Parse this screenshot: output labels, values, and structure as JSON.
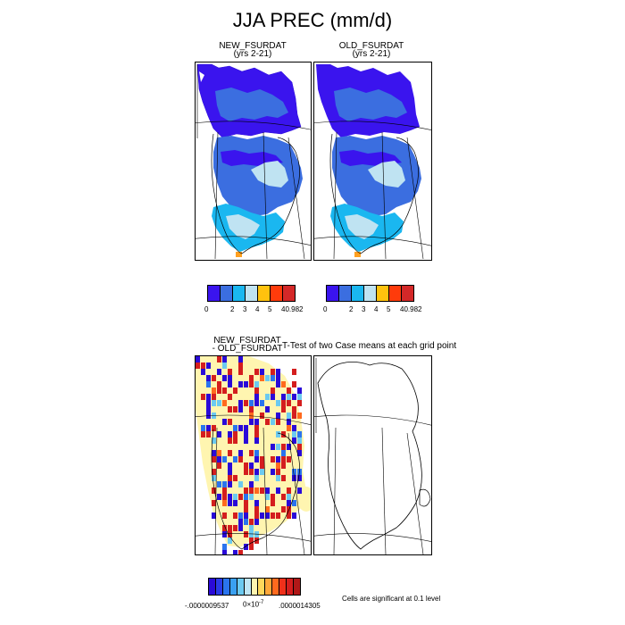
{
  "title": "JJA PREC (mm/d)",
  "top_panels": [
    {
      "title": "NEW_FSURDAT",
      "subtitle": "(yrs 2-21)"
    },
    {
      "title": "OLD_FSURDAT",
      "subtitle": "(yrs 2-21)"
    }
  ],
  "top_colorbar": {
    "colors": [
      "#3a14ee",
      "#3b6ee0",
      "#1ab7f0",
      "#bfe3f2",
      "#ffc20e",
      "#ff3b0b",
      "#d42828"
    ],
    "labels": [
      "0",
      "2",
      "3",
      "4",
      "5",
      "40.982"
    ]
  },
  "diff_panel": {
    "title_line1": "NEW_FSURDAT",
    "title_line2": "- OLD_FSURDAT"
  },
  "ttest_title": "T-Test of two Case means at each grid point",
  "bottom_colorbar": {
    "colors": [
      "#2a0ad8",
      "#2a3ae8",
      "#2a74ee",
      "#3aa0f0",
      "#6ccaf0",
      "#bfe6f5",
      "#fff5b0",
      "#ffd85c",
      "#ffa83a",
      "#ff6a1e",
      "#f0301a",
      "#d41e1e",
      "#b01818"
    ],
    "label_left": "-.0000009537",
    "label_mid_base": "0×10",
    "label_mid_exp": "-7",
    "label_right": ".0000014305"
  },
  "significance_note": "Cells are significant at 0.1 level",
  "map_colors": {
    "ocean": "#ffffff",
    "deep_blue": "#3a14ee",
    "mid_blue": "#3b6ee0",
    "cyan": "#1ab7f0",
    "light_blue": "#bfe3f2",
    "orange": "#ffa020",
    "diff_yellow": "#fff5b0",
    "diff_red": "#d42828",
    "diff_blue": "#3a14ee"
  }
}
